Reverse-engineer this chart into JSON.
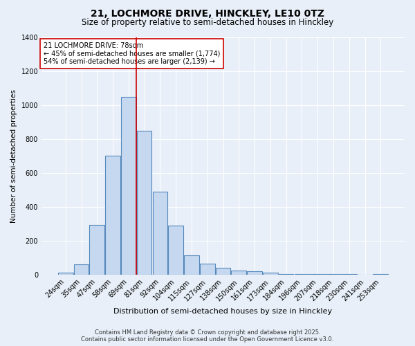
{
  "title_line1": "21, LOCHMORE DRIVE, HINCKLEY, LE10 0TZ",
  "title_line2": "Size of property relative to semi-detached houses in Hinckley",
  "xlabel": "Distribution of semi-detached houses by size in Hinckley",
  "ylabel": "Number of semi-detached properties",
  "categories": [
    "24sqm",
    "35sqm",
    "47sqm",
    "58sqm",
    "69sqm",
    "81sqm",
    "92sqm",
    "104sqm",
    "115sqm",
    "127sqm",
    "138sqm",
    "150sqm",
    "161sqm",
    "173sqm",
    "184sqm",
    "196sqm",
    "207sqm",
    "218sqm",
    "230sqm",
    "241sqm",
    "253sqm"
  ],
  "values": [
    10,
    60,
    295,
    700,
    1050,
    850,
    490,
    290,
    115,
    65,
    40,
    25,
    18,
    10,
    5,
    5,
    5,
    3,
    3,
    0,
    5
  ],
  "bar_color": "#c5d8f0",
  "bar_edge_color": "#5588bb",
  "background_color": "#e8eff8",
  "grid_color": "#ffffff",
  "vline_color": "#cc0000",
  "vline_x_index": 4.5,
  "annotation_text": "21 LOCHMORE DRIVE: 78sqm\n← 45% of semi-detached houses are smaller (1,774)\n54% of semi-detached houses are larger (2,139) →",
  "annotation_box_color": "#ffffff",
  "annotation_box_edge_color": "#cc0000",
  "footer_text": "Contains HM Land Registry data © Crown copyright and database right 2025.\nContains public sector information licensed under the Open Government Licence v3.0.",
  "ylim": [
    0,
    1400
  ],
  "yticks": [
    0,
    200,
    400,
    600,
    800,
    1000,
    1200,
    1400
  ],
  "title_fontsize": 10,
  "subtitle_fontsize": 8.5,
  "xlabel_fontsize": 8,
  "ylabel_fontsize": 7.5,
  "tick_fontsize": 7,
  "annotation_fontsize": 7,
  "footer_fontsize": 6
}
